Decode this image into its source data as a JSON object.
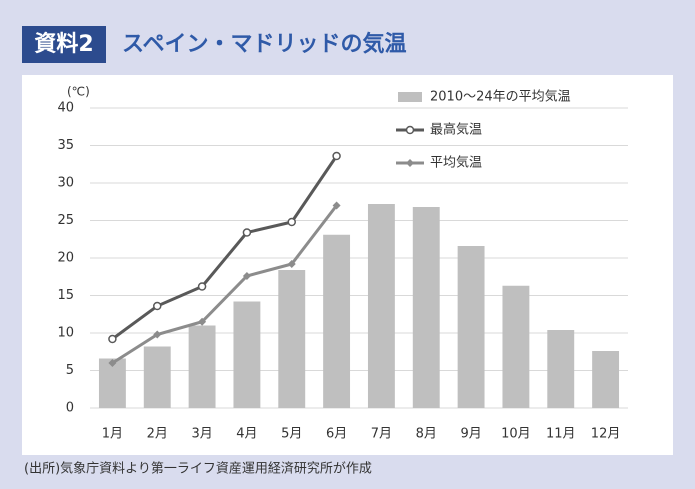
{
  "chart_data": {
    "type": "bar",
    "label": "資料2",
    "title": "スペイン・マドリッドの気温",
    "y_unit": "(℃)",
    "source": "(出所)気象庁資料より第一ライフ資産運用経済研究所が作成",
    "categories": [
      "1月",
      "2月",
      "3月",
      "4月",
      "5月",
      "6月",
      "7月",
      "8月",
      "9月",
      "10月",
      "11月",
      "12月"
    ],
    "series": [
      {
        "name": "2010～24年の平均気温",
        "type": "bar",
        "color": "#bfbfbf",
        "values": [
          6.6,
          8.2,
          11.0,
          14.2,
          18.4,
          23.1,
          27.2,
          26.8,
          21.6,
          16.3,
          10.4,
          7.6
        ]
      },
      {
        "name": "最高気温",
        "type": "line",
        "marker": "circle",
        "color": "#595959",
        "values": [
          9.2,
          13.6,
          16.2,
          23.4,
          24.8,
          33.6,
          null,
          null,
          null,
          null,
          null,
          null
        ]
      },
      {
        "name": "平均気温",
        "type": "line",
        "marker": "diamond",
        "color": "#8c8c8c",
        "values": [
          6.0,
          9.8,
          11.5,
          17.6,
          19.2,
          27.0,
          null,
          null,
          null,
          null,
          null,
          null
        ]
      }
    ],
    "ylim": [
      0,
      40
    ],
    "yticks": [
      0,
      5,
      10,
      15,
      20,
      25,
      30,
      35,
      40
    ],
    "grid": true
  }
}
